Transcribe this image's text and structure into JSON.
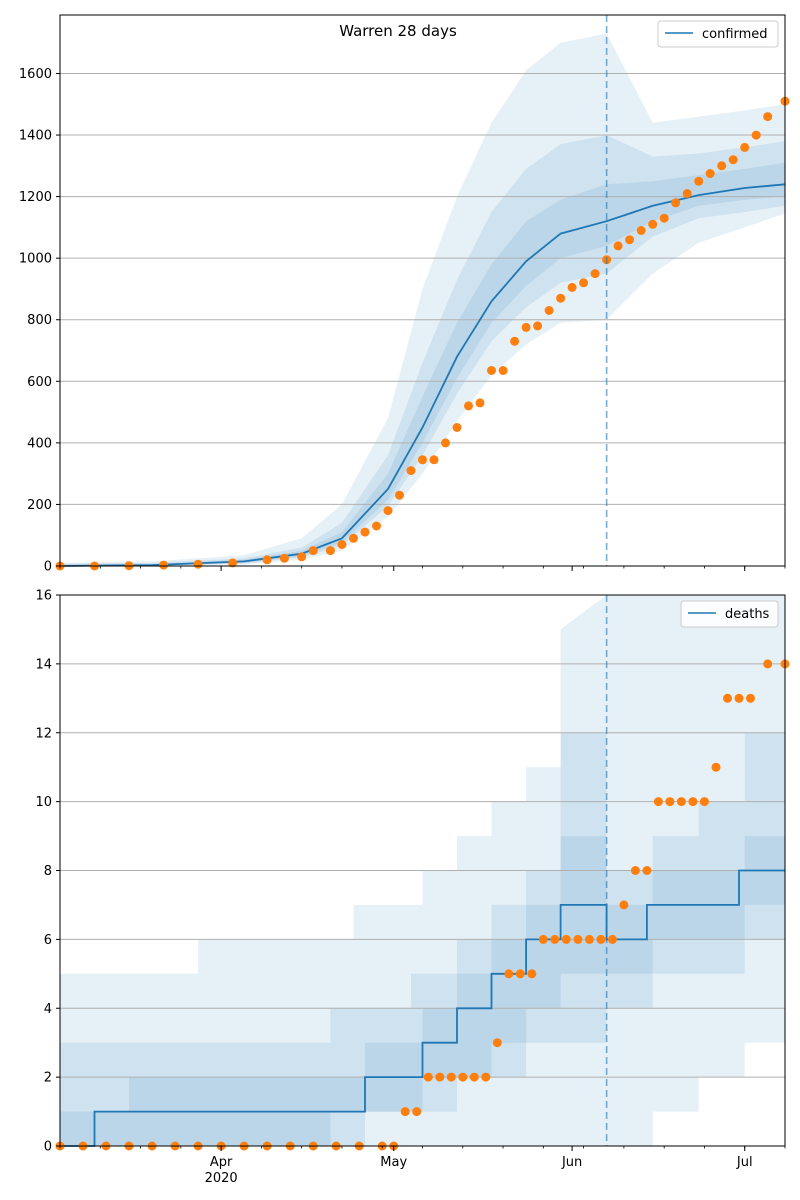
{
  "figure": {
    "title": "Warren 28 days",
    "x_ticks": [
      {
        "label": "Apr",
        "sub": "2020",
        "date": "2020-04-01"
      },
      {
        "label": "May",
        "sub": "",
        "date": "2020-05-01"
      },
      {
        "label": "Jun",
        "sub": "",
        "date": "2020-06-01"
      },
      {
        "label": "Jul",
        "sub": "",
        "date": "2020-07-01"
      }
    ],
    "forecast_start": "2020-06-07",
    "colors": {
      "model": "#1f77b4",
      "observed": "#ff7f0e",
      "band": "#1f77b4",
      "grid": "#b0b0b0"
    }
  },
  "chart_data": [
    {
      "type": "line",
      "series_name": "confirmed",
      "x_range": [
        "2020-03-04",
        "2020-07-08"
      ],
      "ylim": [
        0,
        1790
      ],
      "yticks": [
        0,
        200,
        400,
        600,
        800,
        1000,
        1200,
        1400,
        1600
      ],
      "grid": true,
      "legend": "top-right",
      "model": {
        "x": [
          "2020-03-04",
          "2020-03-20",
          "2020-04-05",
          "2020-04-15",
          "2020-04-22",
          "2020-04-30",
          "2020-05-06",
          "2020-05-12",
          "2020-05-18",
          "2020-05-24",
          "2020-05-30",
          "2020-06-07",
          "2020-06-15",
          "2020-06-23",
          "2020-07-01",
          "2020-07-08"
        ],
        "y": [
          0,
          3,
          15,
          40,
          90,
          250,
          450,
          680,
          860,
          990,
          1080,
          1120,
          1170,
          1205,
          1228,
          1240
        ]
      },
      "bands": [
        {
          "x": [
            "2020-03-04",
            "2020-03-20",
            "2020-04-05",
            "2020-04-15",
            "2020-04-22",
            "2020-04-30",
            "2020-05-06",
            "2020-05-12",
            "2020-05-18",
            "2020-05-24",
            "2020-05-30",
            "2020-06-07",
            "2020-06-15",
            "2020-06-23",
            "2020-07-01",
            "2020-07-08"
          ],
          "lower": [
            0,
            0,
            5,
            20,
            50,
            160,
            300,
            470,
            620,
            720,
            790,
            800,
            950,
            1050,
            1100,
            1145
          ],
          "upper": [
            10,
            15,
            35,
            90,
            200,
            480,
            900,
            1200,
            1440,
            1610,
            1700,
            1730,
            1440,
            1460,
            1480,
            1500
          ]
        },
        {
          "x": [
            "2020-03-04",
            "2020-03-20",
            "2020-04-05",
            "2020-04-15",
            "2020-04-22",
            "2020-04-30",
            "2020-05-06",
            "2020-05-12",
            "2020-05-18",
            "2020-05-24",
            "2020-05-30",
            "2020-06-07",
            "2020-06-15",
            "2020-06-23",
            "2020-07-01",
            "2020-07-08"
          ],
          "lower": [
            0,
            1,
            8,
            28,
            65,
            195,
            360,
            560,
            730,
            840,
            920,
            950,
            1070,
            1130,
            1150,
            1170
          ],
          "upper": [
            7,
            10,
            25,
            60,
            140,
            360,
            660,
            930,
            1150,
            1290,
            1370,
            1400,
            1330,
            1340,
            1360,
            1380
          ]
        },
        {
          "x": [
            "2020-03-04",
            "2020-03-20",
            "2020-04-05",
            "2020-04-15",
            "2020-04-22",
            "2020-04-30",
            "2020-05-06",
            "2020-05-12",
            "2020-05-18",
            "2020-05-24",
            "2020-05-30",
            "2020-06-07",
            "2020-06-15",
            "2020-06-23",
            "2020-07-01",
            "2020-07-08"
          ],
          "lower": [
            0,
            2,
            10,
            32,
            75,
            215,
            400,
            610,
            790,
            910,
            1000,
            1040,
            1120,
            1170,
            1190,
            1200
          ],
          "upper": [
            5,
            7,
            20,
            50,
            110,
            300,
            550,
            790,
            980,
            1120,
            1190,
            1240,
            1250,
            1270,
            1290,
            1310
          ]
        }
      ],
      "observed": {
        "x": [
          "2020-03-04",
          "2020-03-10",
          "2020-03-16",
          "2020-03-22",
          "2020-03-28",
          "2020-04-03",
          "2020-04-09",
          "2020-04-12",
          "2020-04-15",
          "2020-04-17",
          "2020-04-20",
          "2020-04-22",
          "2020-04-24",
          "2020-04-26",
          "2020-04-28",
          "2020-04-30",
          "2020-05-02",
          "2020-05-04",
          "2020-05-06",
          "2020-05-08",
          "2020-05-10",
          "2020-05-12",
          "2020-05-14",
          "2020-05-16",
          "2020-05-18",
          "2020-05-20",
          "2020-05-22",
          "2020-05-24",
          "2020-05-26",
          "2020-05-28",
          "2020-05-30",
          "2020-06-01",
          "2020-06-03",
          "2020-06-05",
          "2020-06-07",
          "2020-06-09",
          "2020-06-11",
          "2020-06-13",
          "2020-06-15",
          "2020-06-17",
          "2020-06-19",
          "2020-06-21",
          "2020-06-23",
          "2020-06-25",
          "2020-06-27",
          "2020-06-29",
          "2020-07-01",
          "2020-07-03",
          "2020-07-05",
          "2020-07-08"
        ],
        "y": [
          0,
          0,
          1,
          3,
          6,
          10,
          20,
          25,
          30,
          50,
          50,
          70,
          90,
          110,
          130,
          180,
          230,
          310,
          345,
          345,
          400,
          450,
          520,
          530,
          635,
          635,
          730,
          775,
          780,
          830,
          870,
          905,
          920,
          950,
          995,
          1040,
          1060,
          1090,
          1110,
          1130,
          1180,
          1210,
          1250,
          1275,
          1300,
          1320,
          1360,
          1400,
          1460,
          1510
        ]
      }
    },
    {
      "type": "line",
      "series_name": "deaths",
      "x_range": [
        "2020-03-04",
        "2020-07-08"
      ],
      "ylim": [
        0,
        16
      ],
      "yticks": [
        0,
        2,
        4,
        6,
        8,
        10,
        12,
        14,
        16
      ],
      "grid": true,
      "legend": "top-right",
      "model": {
        "x": [
          "2020-03-04",
          "2020-03-10",
          "2020-03-10",
          "2020-04-26",
          "2020-04-26",
          "2020-05-06",
          "2020-05-06",
          "2020-05-12",
          "2020-05-12",
          "2020-05-18",
          "2020-05-18",
          "2020-05-24",
          "2020-05-24",
          "2020-05-30",
          "2020-05-30",
          "2020-06-07",
          "2020-06-07",
          "2020-06-14",
          "2020-06-14",
          "2020-06-30",
          "2020-06-30",
          "2020-07-08"
        ],
        "y": [
          0,
          0,
          1,
          1,
          2,
          2,
          3,
          3,
          4,
          4,
          5,
          5,
          6,
          6,
          7,
          7,
          6,
          6,
          7,
          7,
          8,
          8
        ]
      },
      "bands": [
        {
          "x": [
            "2020-03-04",
            "2020-03-28",
            "2020-03-28",
            "2020-04-24",
            "2020-04-24",
            "2020-05-06",
            "2020-05-06",
            "2020-05-12",
            "2020-05-12",
            "2020-05-18",
            "2020-05-18",
            "2020-05-24",
            "2020-05-24",
            "2020-05-30",
            "2020-05-30",
            "2020-06-07",
            "2020-06-07",
            "2020-06-15",
            "2020-06-15",
            "2020-06-23",
            "2020-06-23",
            "2020-07-01",
            "2020-07-01",
            "2020-07-08"
          ],
          "lower": [
            0,
            0,
            0,
            0,
            0,
            0,
            0,
            0,
            0,
            0,
            0,
            0,
            0,
            0,
            0,
            0,
            0,
            0,
            1,
            1,
            2,
            2,
            3,
            3
          ],
          "upper": [
            5,
            5,
            6,
            6,
            7,
            7,
            8,
            8,
            9,
            9,
            10,
            10,
            11,
            11,
            15,
            16,
            16,
            16,
            16,
            16,
            16,
            16,
            16,
            16
          ]
        },
        {
          "x": [
            "2020-03-04",
            "2020-03-12",
            "2020-03-12",
            "2020-04-20",
            "2020-04-20",
            "2020-05-04",
            "2020-05-04",
            "2020-05-12",
            "2020-05-12",
            "2020-05-18",
            "2020-05-18",
            "2020-05-24",
            "2020-05-24",
            "2020-05-30",
            "2020-05-30",
            "2020-06-07",
            "2020-06-07",
            "2020-06-15",
            "2020-06-15",
            "2020-06-23",
            "2020-06-23",
            "2020-07-01",
            "2020-07-01",
            "2020-07-08"
          ],
          "lower": [
            0,
            0,
            0,
            0,
            1,
            1,
            1,
            1,
            2,
            2,
            2,
            2,
            3,
            3,
            3,
            3,
            4,
            4,
            5,
            5,
            5,
            5,
            6,
            6
          ],
          "upper": [
            3,
            3,
            3,
            3,
            4,
            4,
            5,
            5,
            6,
            6,
            7,
            7,
            8,
            8,
            12,
            12,
            8,
            8,
            9,
            9,
            10,
            10,
            12,
            12
          ]
        },
        {
          "x": [
            "2020-03-04",
            "2020-03-16",
            "2020-03-16",
            "2020-04-26",
            "2020-04-26",
            "2020-05-06",
            "2020-05-06",
            "2020-05-12",
            "2020-05-12",
            "2020-05-18",
            "2020-05-18",
            "2020-05-24",
            "2020-05-24",
            "2020-05-30",
            "2020-05-30",
            "2020-06-07",
            "2020-06-07",
            "2020-06-15",
            "2020-06-15",
            "2020-06-23",
            "2020-06-23",
            "2020-07-01",
            "2020-07-01",
            "2020-07-08"
          ],
          "lower": [
            0,
            0,
            0,
            0,
            1,
            1,
            2,
            2,
            2,
            2,
            3,
            3,
            4,
            4,
            5,
            5,
            5,
            5,
            6,
            6,
            6,
            6,
            7,
            7
          ],
          "upper": [
            1,
            1,
            2,
            2,
            3,
            3,
            4,
            4,
            5,
            5,
            6,
            6,
            7,
            7,
            9,
            9,
            7,
            7,
            8,
            8,
            8,
            8,
            9,
            9
          ]
        }
      ],
      "observed": {
        "x": [
          "2020-03-04",
          "2020-03-08",
          "2020-03-12",
          "2020-03-16",
          "2020-03-20",
          "2020-03-24",
          "2020-03-28",
          "2020-04-01",
          "2020-04-05",
          "2020-04-09",
          "2020-04-13",
          "2020-04-17",
          "2020-04-21",
          "2020-04-25",
          "2020-04-29",
          "2020-05-01",
          "2020-05-03",
          "2020-05-05",
          "2020-05-07",
          "2020-05-09",
          "2020-05-11",
          "2020-05-13",
          "2020-05-15",
          "2020-05-17",
          "2020-05-19",
          "2020-05-21",
          "2020-05-23",
          "2020-05-25",
          "2020-05-27",
          "2020-05-29",
          "2020-05-31",
          "2020-06-02",
          "2020-06-04",
          "2020-06-06",
          "2020-06-08",
          "2020-06-10",
          "2020-06-12",
          "2020-06-14",
          "2020-06-16",
          "2020-06-18",
          "2020-06-20",
          "2020-06-22",
          "2020-06-24",
          "2020-06-26",
          "2020-06-28",
          "2020-06-30",
          "2020-07-02",
          "2020-07-05",
          "2020-07-08"
        ],
        "y": [
          0,
          0,
          0,
          0,
          0,
          0,
          0,
          0,
          0,
          0,
          0,
          0,
          0,
          0,
          0,
          0,
          1,
          1,
          2,
          2,
          2,
          2,
          2,
          2,
          3,
          5,
          5,
          5,
          6,
          6,
          6,
          6,
          6,
          6,
          6,
          7,
          8,
          8,
          10,
          10,
          10,
          10,
          10,
          11,
          13,
          13,
          13,
          14,
          14
        ]
      }
    }
  ]
}
